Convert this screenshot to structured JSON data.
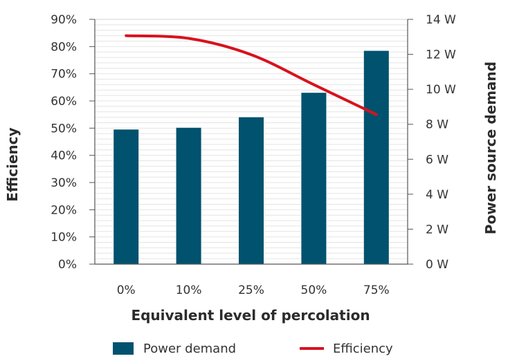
{
  "chart_data": {
    "type": "bar",
    "categories": [
      "0%",
      "10%",
      "25%",
      "50%",
      "75%"
    ],
    "xlabel": "Equivalent level of percolation",
    "ylabel_left": "Efficiency",
    "ylabel_right": "Power source demand",
    "y_left": {
      "range": [
        0,
        90
      ],
      "ticks": [
        0,
        10,
        20,
        30,
        40,
        50,
        60,
        70,
        80,
        90
      ],
      "tick_labels": [
        "0%",
        "10%",
        "20%",
        "30%",
        "40%",
        "50%",
        "60%",
        "70%",
        "80%",
        "90%"
      ]
    },
    "y_right": {
      "range": [
        0,
        14
      ],
      "ticks": [
        0,
        2,
        4,
        6,
        8,
        10,
        12,
        14
      ],
      "tick_labels": [
        "0 W",
        "2 W",
        "4 W",
        "6 W",
        "8 W",
        "10 W",
        "12 W",
        "14 W"
      ]
    },
    "grid": "horizontal",
    "legend_position": "bottom",
    "series": [
      {
        "name": "Power demand",
        "type": "bar",
        "axis": "right",
        "color": "#00526e",
        "values": [
          7.7,
          7.8,
          8.4,
          9.8,
          12.2
        ]
      },
      {
        "name": "Efficiency",
        "type": "line",
        "axis": "left",
        "color": "#d8121c",
        "values": [
          84,
          83,
          77,
          66,
          55
        ]
      }
    ]
  }
}
